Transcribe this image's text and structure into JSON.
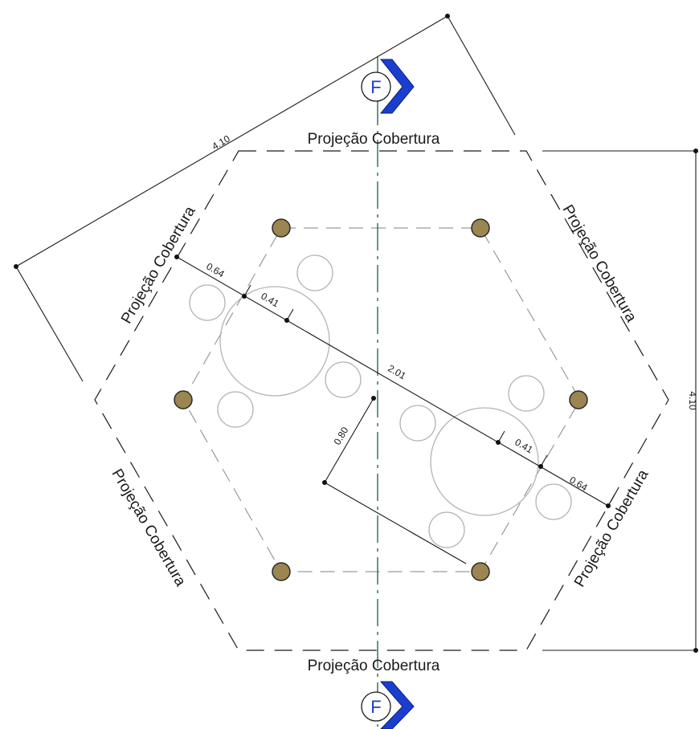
{
  "roof_labels": {
    "top": "Projeção Cobertura",
    "bottom": "Projeção Cobertura",
    "upper_left": "Projeção Cobertura",
    "upper_right": "Projeção Cobertura",
    "lower_left": "Projeção Cobertura",
    "lower_right": "Projeção Cobertura"
  },
  "section_markers": {
    "top": "F",
    "bottom": "F"
  },
  "dimensions": {
    "diagonal_overall": "4.10",
    "vertical_overall": "4.10",
    "center_span": "2.01",
    "left_outer": "0.64",
    "left_inner": "0.41",
    "right_inner": "0.41",
    "right_outer": "0.64",
    "offset": "0.80"
  },
  "colors": {
    "post_fill": "#9b8550",
    "section_marker": "#1a3fd0",
    "axis_line": "#2b6a4a"
  }
}
